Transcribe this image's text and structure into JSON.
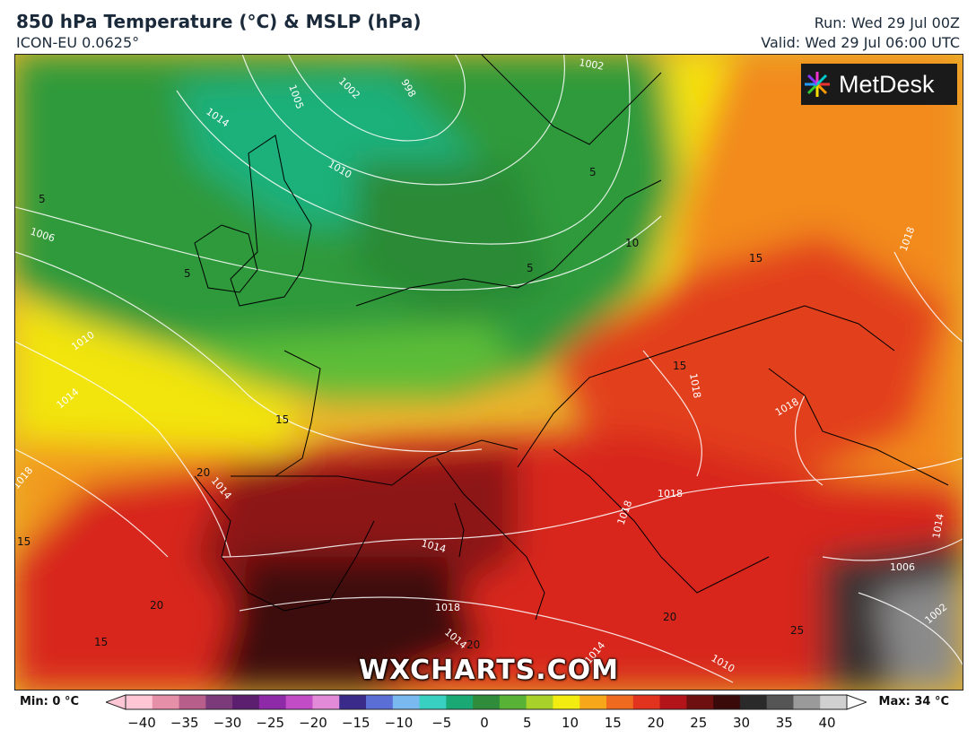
{
  "header": {
    "title": "850 hPa Temperature (°C) & MSLP (hPa)",
    "model": "ICON-EU 0.0625°",
    "run": "Run: Wed 29 Jul 00Z",
    "valid": "Valid: Wed 29 Jul 06:00 UTC"
  },
  "logo": {
    "text": "MetDesk"
  },
  "watermark": "WXCHARTS.COM",
  "map_labels": {
    "temps": [
      "5",
      "5",
      "5",
      "5",
      "10",
      "15",
      "15",
      "15",
      "15",
      "15",
      "20",
      "20",
      "20",
      "20",
      "25"
    ],
    "isobars": [
      "1005",
      "1002",
      "998",
      "1014",
      "1010",
      "1006",
      "1010",
      "1014",
      "1018",
      "1002",
      "1018",
      "1018",
      "1018",
      "1018",
      "1018",
      "1014",
      "1014",
      "1018",
      "1014",
      "1014",
      "1014",
      "1010",
      "1006",
      "1002"
    ]
  },
  "legend": {
    "min_label": "Min: 0 °C",
    "max_label": "Max: 34 °C",
    "ticks": [
      "−40",
      "−35",
      "−30",
      "−25",
      "−20",
      "−15",
      "−10",
      "−5",
      "0",
      "5",
      "10",
      "15",
      "20",
      "25",
      "30",
      "35",
      "40"
    ],
    "colors": [
      "#ffc7d6",
      "#e68fa8",
      "#b85e8a",
      "#7d3a7a",
      "#5c1e6e",
      "#8e2aa8",
      "#c24cc6",
      "#e28ad8",
      "#3a2a8a",
      "#5a6ed6",
      "#7ab8f0",
      "#38d0c0",
      "#1aa874",
      "#2e8c3a",
      "#58b236",
      "#a8d22a",
      "#f2ec10",
      "#f7a81a",
      "#ef6a1e",
      "#e2331e",
      "#b2141a",
      "#6e1010",
      "#3a0a0a",
      "#2a2a2a",
      "#555555",
      "#9a9a9a",
      "#d0d0d0"
    ]
  }
}
